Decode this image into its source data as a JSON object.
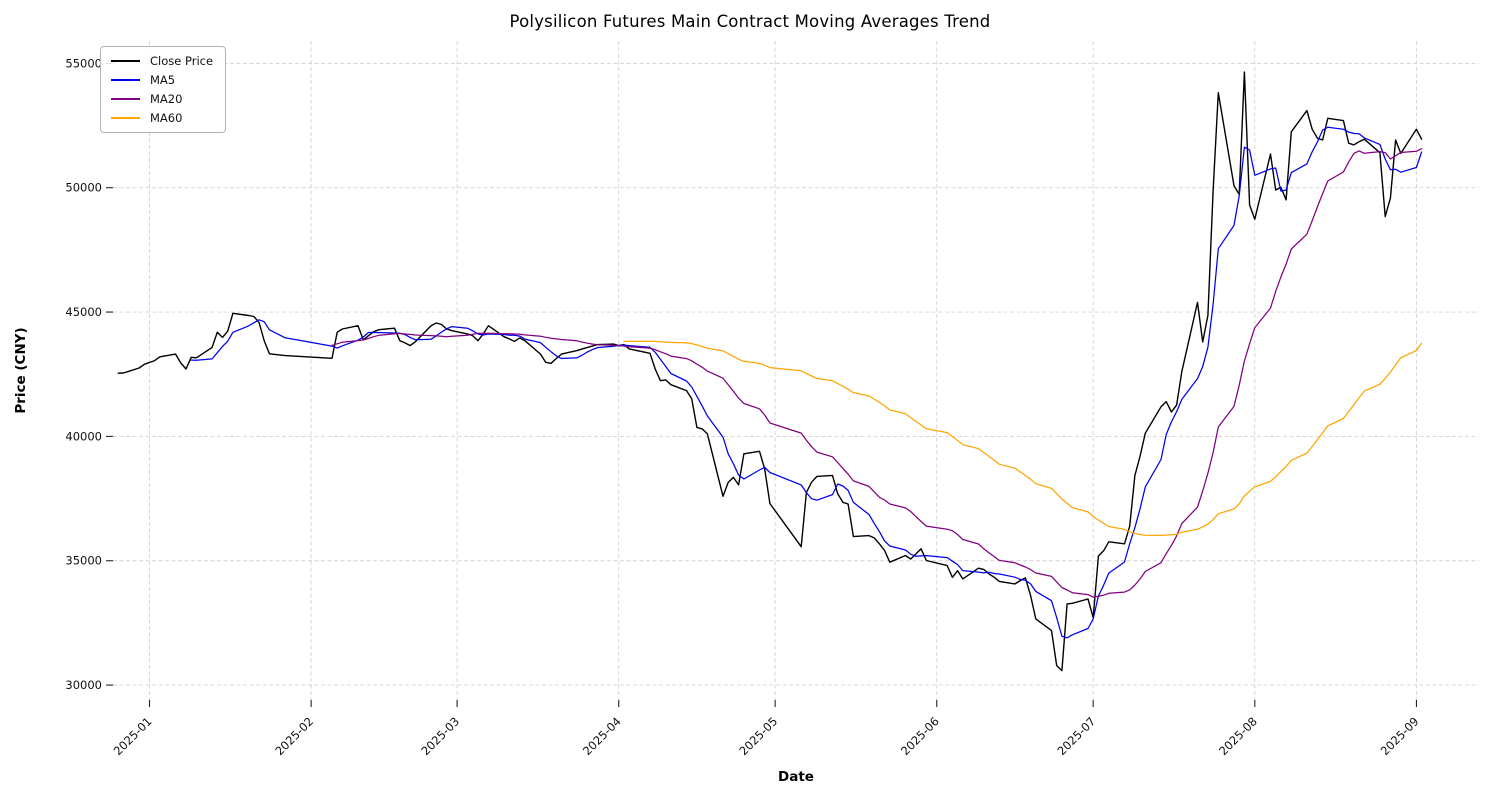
{
  "chart_data": {
    "type": "line",
    "title": "Polysilicon Futures Main Contract Moving Averages Trend",
    "xlabel": "Date",
    "ylabel": "Price (CNY)",
    "x_ticks": [
      {
        "date": "2025-01-01",
        "label": "2025-01"
      },
      {
        "date": "2025-02-01",
        "label": "2025-02"
      },
      {
        "date": "2025-03-01",
        "label": "2025-03"
      },
      {
        "date": "2025-04-01",
        "label": "2025-04"
      },
      {
        "date": "2025-05-01",
        "label": "2025-05"
      },
      {
        "date": "2025-06-01",
        "label": "2025-06"
      },
      {
        "date": "2025-07-01",
        "label": "2025-07"
      },
      {
        "date": "2025-08-01",
        "label": "2025-08"
      },
      {
        "date": "2025-09-01",
        "label": "2025-09"
      }
    ],
    "y_ticks": [
      30000,
      35000,
      40000,
      45000,
      50000,
      55000
    ],
    "ylim": [
      29400,
      55900
    ],
    "xlim_dates": [
      "2024-12-25",
      "2025-09-13"
    ],
    "grid": {
      "show": true,
      "style": "dashed",
      "color": "#d3d3d3"
    },
    "legend_position": "upper-left",
    "series": [
      {
        "name": "Close Price",
        "color": "#000000",
        "width": 1.4,
        "kind": "raw",
        "dates": [
          "2024-12-26",
          "2024-12-27",
          "2024-12-30",
          "2024-12-31",
          "2025-01-02",
          "2025-01-03",
          "2025-01-06",
          "2025-01-07",
          "2025-01-08",
          "2025-01-09",
          "2025-01-10",
          "2025-01-13",
          "2025-01-14",
          "2025-01-15",
          "2025-01-16",
          "2025-01-17",
          "2025-01-20",
          "2025-01-21",
          "2025-01-22",
          "2025-01-23",
          "2025-01-24",
          "2025-01-27",
          "2025-02-05",
          "2025-02-06",
          "2025-02-07",
          "2025-02-10",
          "2025-02-11",
          "2025-02-12",
          "2025-02-13",
          "2025-02-14",
          "2025-02-17",
          "2025-02-18",
          "2025-02-19",
          "2025-02-20",
          "2025-02-21",
          "2025-02-24",
          "2025-02-25",
          "2025-02-26",
          "2025-02-27",
          "2025-02-28",
          "2025-03-03",
          "2025-03-04",
          "2025-03-05",
          "2025-03-06",
          "2025-03-07",
          "2025-03-10",
          "2025-03-11",
          "2025-03-12",
          "2025-03-13",
          "2025-03-14",
          "2025-03-17",
          "2025-03-18",
          "2025-03-19",
          "2025-03-20",
          "2025-03-21",
          "2025-03-24",
          "2025-03-25",
          "2025-03-26",
          "2025-03-27",
          "2025-03-28",
          "2025-03-31",
          "2025-04-01",
          "2025-04-02",
          "2025-04-03",
          "2025-04-07",
          "2025-04-08",
          "2025-04-09",
          "2025-04-10",
          "2025-04-11",
          "2025-04-14",
          "2025-04-15",
          "2025-04-16",
          "2025-04-17",
          "2025-04-18",
          "2025-04-21",
          "2025-04-22",
          "2025-04-23",
          "2025-04-24",
          "2025-04-25",
          "2025-04-28",
          "2025-04-29",
          "2025-04-30",
          "2025-05-06",
          "2025-05-07",
          "2025-05-08",
          "2025-05-09",
          "2025-05-12",
          "2025-05-13",
          "2025-05-14",
          "2025-05-15",
          "2025-05-16",
          "2025-05-19",
          "2025-05-20",
          "2025-05-21",
          "2025-05-22",
          "2025-05-23",
          "2025-05-26",
          "2025-05-27",
          "2025-05-28",
          "2025-05-29",
          "2025-05-30",
          "2025-06-03",
          "2025-06-04",
          "2025-06-05",
          "2025-06-06",
          "2025-06-09",
          "2025-06-10",
          "2025-06-11",
          "2025-06-12",
          "2025-06-13",
          "2025-06-16",
          "2025-06-17",
          "2025-06-18",
          "2025-06-19",
          "2025-06-20",
          "2025-06-23",
          "2025-06-24",
          "2025-06-25",
          "2025-06-26",
          "2025-06-27",
          "2025-06-30",
          "2025-07-01",
          "2025-07-02",
          "2025-07-03",
          "2025-07-04",
          "2025-07-07",
          "2025-07-08",
          "2025-07-09",
          "2025-07-10",
          "2025-07-11",
          "2025-07-14",
          "2025-07-15",
          "2025-07-16",
          "2025-07-17",
          "2025-07-18",
          "2025-07-21",
          "2025-07-22",
          "2025-07-23",
          "2025-07-24",
          "2025-07-25",
          "2025-07-28",
          "2025-07-29",
          "2025-07-30",
          "2025-07-31",
          "2025-08-01",
          "2025-08-04",
          "2025-08-05",
          "2025-08-06",
          "2025-08-07",
          "2025-08-08",
          "2025-08-11",
          "2025-08-12",
          "2025-08-13",
          "2025-08-14",
          "2025-08-15",
          "2025-08-18",
          "2025-08-19",
          "2025-08-20",
          "2025-08-21",
          "2025-08-22",
          "2025-08-25",
          "2025-08-26",
          "2025-08-27",
          "2025-08-28",
          "2025-08-29",
          "2025-09-01",
          "2025-09-02"
        ],
        "values": [
          42540,
          42550,
          42750,
          42900,
          43050,
          43200,
          43310,
          42950,
          42710,
          43180,
          43160,
          43580,
          44190,
          43980,
          44230,
          44950,
          44860,
          44820,
          44590,
          43850,
          43320,
          43250,
          43140,
          44190,
          44320,
          44450,
          43880,
          44050,
          44210,
          44290,
          44350,
          43850,
          43760,
          43650,
          43810,
          44450,
          44560,
          44500,
          44320,
          44250,
          44120,
          44050,
          43850,
          44120,
          44450,
          44010,
          43920,
          43820,
          43960,
          43850,
          43310,
          42980,
          42940,
          43130,
          43310,
          43450,
          43520,
          43580,
          43640,
          43690,
          43710,
          43650,
          43690,
          43520,
          43340,
          42710,
          42240,
          42270,
          42080,
          41840,
          41510,
          40360,
          40300,
          40100,
          37590,
          38150,
          38350,
          38050,
          39300,
          39400,
          38690,
          37300,
          35565,
          37750,
          38160,
          38390,
          38430,
          37690,
          37350,
          37280,
          35970,
          36010,
          35920,
          35680,
          35410,
          34940,
          35210,
          35070,
          35270,
          35480,
          35010,
          34805,
          34335,
          34600,
          34270,
          34700,
          34650,
          34470,
          34340,
          34170,
          34070,
          34200,
          34310,
          33600,
          32660,
          32190,
          30785,
          30583,
          33263,
          33290,
          33460,
          32714,
          35190,
          35400,
          35760,
          35680,
          36390,
          38430,
          39210,
          40130,
          41190,
          41400,
          40980,
          41260,
          42600,
          45390,
          43800,
          44860,
          49870,
          53820,
          50080,
          49730,
          54650,
          49305,
          48735,
          51357,
          49910,
          50020,
          49510,
          52250,
          53100,
          52350,
          51990,
          51920,
          52790,
          52700,
          51790,
          51720,
          51850,
          51950,
          51410,
          48840,
          49580,
          51920,
          51380,
          52350,
          51950
        ]
      },
      {
        "name": "MA5",
        "color": "#0000ee",
        "width": 1.25,
        "kind": "moving-average",
        "window": 5,
        "visible_from": "2025-01-09"
      },
      {
        "name": "MA20",
        "color": "#800080",
        "width": 1.25,
        "kind": "moving-average",
        "window": 20,
        "visible_from": "2025-02-05"
      },
      {
        "name": "MA60",
        "color": "#ffa500",
        "width": 1.25,
        "kind": "moving-average",
        "window": 60,
        "visible_from": "2025-04-02"
      }
    ]
  }
}
